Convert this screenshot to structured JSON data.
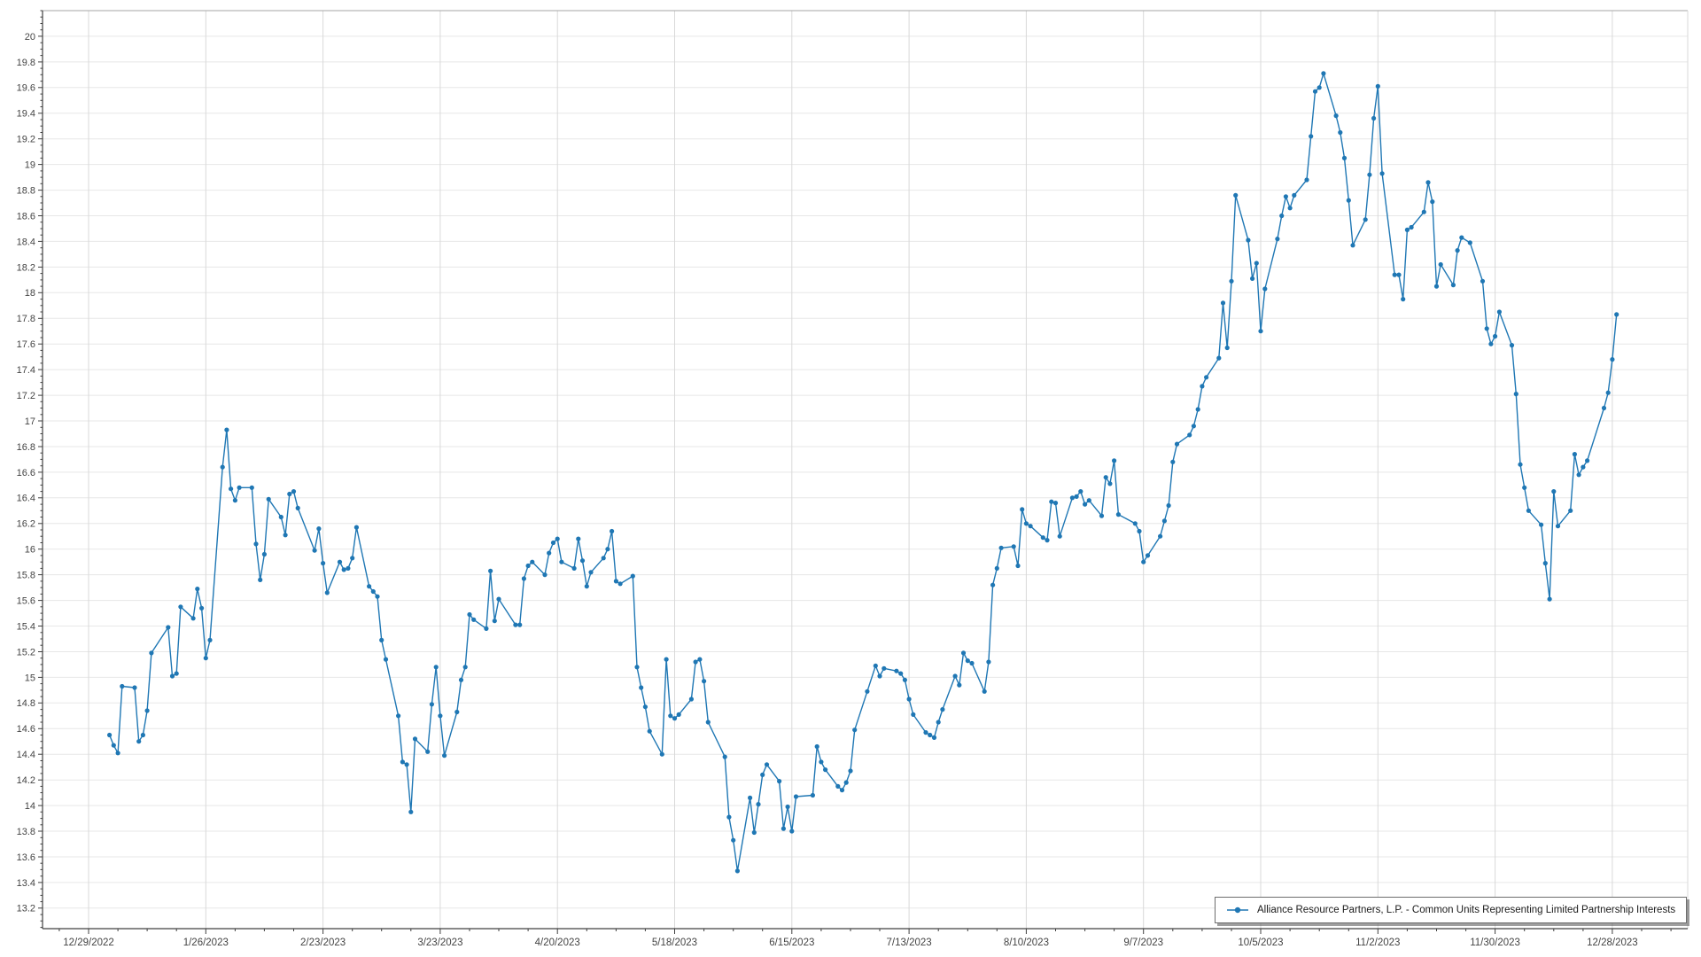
{
  "legend": {
    "label": "Alliance Resource Partners, L.P. - Common Units Representing Limited Partnership Interests"
  },
  "colors": {
    "series": "#1f77b4",
    "grid_vertical": "#d9d9d9",
    "grid_horizontal": "#e7e7e7",
    "axis": "#404040",
    "tick": "#404040",
    "label": "#444444",
    "plot_border_top": "#a6a6a6",
    "plot_border_right": "#d9d9d9"
  },
  "chart_data": {
    "type": "line",
    "title": "",
    "xlabel": "",
    "ylabel": "",
    "grid": true,
    "legend_position": "bottom-right",
    "x_axis": {
      "range": [
        "2022-12-18",
        "2024-01-15"
      ],
      "tick_dates": [
        "2022-12-29",
        "2023-01-26",
        "2023-02-23",
        "2023-03-23",
        "2023-04-20",
        "2023-05-18",
        "2023-06-15",
        "2023-07-13",
        "2023-08-10",
        "2023-09-07",
        "2023-10-05",
        "2023-11-02",
        "2023-11-30",
        "2023-12-28"
      ],
      "tick_labels": [
        "12/29/2022",
        "1/26/2023",
        "2/23/2023",
        "3/23/2023",
        "4/20/2023",
        "5/18/2023",
        "6/15/2023",
        "7/13/2023",
        "8/10/2023",
        "9/7/2023",
        "10/5/2023",
        "11/2/2023",
        "11/30/2023",
        "12/28/2023"
      ],
      "minor_tick_days": 7
    },
    "y_axis": {
      "min": 13.04,
      "max": 20.2,
      "label_step": 0.2,
      "minor_step": 0.05,
      "tick_labels": [
        "20",
        "19.8",
        "19.6",
        "19.4",
        "19.2",
        "19",
        "18.8",
        "18.6",
        "18.4",
        "18.2",
        "18",
        "17.8",
        "17.6",
        "17.4",
        "17.2",
        "17",
        "16.8",
        "16.6",
        "16.4",
        "16.2",
        "16",
        "15.8",
        "15.6",
        "15.4",
        "15.2",
        "15",
        "14.8",
        "14.6",
        "14.4",
        "14.2",
        "14",
        "13.8",
        "13.6",
        "13.4",
        "13.2"
      ]
    },
    "series": [
      {
        "name": "Alliance Resource Partners, L.P. - Common Units Representing Limited Partnership Interests",
        "color": "#1f77b4",
        "points": [
          [
            "2023-01-03",
            14.55
          ],
          [
            "2023-01-04",
            14.47
          ],
          [
            "2023-01-05",
            14.41
          ],
          [
            "2023-01-06",
            14.93
          ],
          [
            "2023-01-09",
            14.92
          ],
          [
            "2023-01-10",
            14.5
          ],
          [
            "2023-01-11",
            14.55
          ],
          [
            "2023-01-12",
            14.74
          ],
          [
            "2023-01-13",
            15.19
          ],
          [
            "2023-01-17",
            15.39
          ],
          [
            "2023-01-18",
            15.01
          ],
          [
            "2023-01-19",
            15.03
          ],
          [
            "2023-01-20",
            15.55
          ],
          [
            "2023-01-23",
            15.46
          ],
          [
            "2023-01-24",
            15.69
          ],
          [
            "2023-01-25",
            15.54
          ],
          [
            "2023-01-26",
            15.15
          ],
          [
            "2023-01-27",
            15.29
          ],
          [
            "2023-01-30",
            16.64
          ],
          [
            "2023-01-31",
            16.93
          ],
          [
            "2023-02-01",
            16.47
          ],
          [
            "2023-02-02",
            16.38
          ],
          [
            "2023-02-03",
            16.48
          ],
          [
            "2023-02-06",
            16.48
          ],
          [
            "2023-02-07",
            16.04
          ],
          [
            "2023-02-08",
            15.76
          ],
          [
            "2023-02-09",
            15.96
          ],
          [
            "2023-02-10",
            16.39
          ],
          [
            "2023-02-13",
            16.25
          ],
          [
            "2023-02-14",
            16.11
          ],
          [
            "2023-02-15",
            16.43
          ],
          [
            "2023-02-16",
            16.45
          ],
          [
            "2023-02-17",
            16.32
          ],
          [
            "2023-02-21",
            15.99
          ],
          [
            "2023-02-22",
            16.16
          ],
          [
            "2023-02-23",
            15.89
          ],
          [
            "2023-02-24",
            15.66
          ],
          [
            "2023-02-27",
            15.9
          ],
          [
            "2023-02-28",
            15.84
          ],
          [
            "2023-03-01",
            15.85
          ],
          [
            "2023-03-02",
            15.93
          ],
          [
            "2023-03-03",
            16.17
          ],
          [
            "2023-03-06",
            15.71
          ],
          [
            "2023-03-07",
            15.67
          ],
          [
            "2023-03-08",
            15.63
          ],
          [
            "2023-03-09",
            15.29
          ],
          [
            "2023-03-10",
            15.14
          ],
          [
            "2023-03-13",
            14.7
          ],
          [
            "2023-03-14",
            14.34
          ],
          [
            "2023-03-15",
            14.32
          ],
          [
            "2023-03-16",
            13.95
          ],
          [
            "2023-03-17",
            14.52
          ],
          [
            "2023-03-20",
            14.42
          ],
          [
            "2023-03-21",
            14.79
          ],
          [
            "2023-03-22",
            15.08
          ],
          [
            "2023-03-23",
            14.7
          ],
          [
            "2023-03-24",
            14.39
          ],
          [
            "2023-03-27",
            14.73
          ],
          [
            "2023-03-28",
            14.98
          ],
          [
            "2023-03-29",
            15.08
          ],
          [
            "2023-03-30",
            15.49
          ],
          [
            "2023-03-31",
            15.45
          ],
          [
            "2023-04-03",
            15.38
          ],
          [
            "2023-04-04",
            15.83
          ],
          [
            "2023-04-05",
            15.44
          ],
          [
            "2023-04-06",
            15.61
          ],
          [
            "2023-04-10",
            15.41
          ],
          [
            "2023-04-11",
            15.41
          ],
          [
            "2023-04-12",
            15.77
          ],
          [
            "2023-04-13",
            15.87
          ],
          [
            "2023-04-14",
            15.9
          ],
          [
            "2023-04-17",
            15.8
          ],
          [
            "2023-04-18",
            15.97
          ],
          [
            "2023-04-19",
            16.05
          ],
          [
            "2023-04-20",
            16.08
          ],
          [
            "2023-04-21",
            15.9
          ],
          [
            "2023-04-24",
            15.85
          ],
          [
            "2023-04-25",
            16.08
          ],
          [
            "2023-04-26",
            15.91
          ],
          [
            "2023-04-27",
            15.71
          ],
          [
            "2023-04-28",
            15.82
          ],
          [
            "2023-05-01",
            15.93
          ],
          [
            "2023-05-02",
            16.0
          ],
          [
            "2023-05-03",
            16.14
          ],
          [
            "2023-05-04",
            15.75
          ],
          [
            "2023-05-05",
            15.73
          ],
          [
            "2023-05-08",
            15.79
          ],
          [
            "2023-05-09",
            15.08
          ],
          [
            "2023-05-10",
            14.92
          ],
          [
            "2023-05-11",
            14.77
          ],
          [
            "2023-05-12",
            14.58
          ],
          [
            "2023-05-15",
            14.4
          ],
          [
            "2023-05-16",
            15.14
          ],
          [
            "2023-05-17",
            14.7
          ],
          [
            "2023-05-18",
            14.68
          ],
          [
            "2023-05-19",
            14.71
          ],
          [
            "2023-05-22",
            14.83
          ],
          [
            "2023-05-23",
            15.12
          ],
          [
            "2023-05-24",
            15.14
          ],
          [
            "2023-05-25",
            14.97
          ],
          [
            "2023-05-26",
            14.65
          ],
          [
            "2023-05-30",
            14.38
          ],
          [
            "2023-05-31",
            13.91
          ],
          [
            "2023-06-01",
            13.73
          ],
          [
            "2023-06-02",
            13.49
          ],
          [
            "2023-06-05",
            14.06
          ],
          [
            "2023-06-06",
            13.79
          ],
          [
            "2023-06-07",
            14.01
          ],
          [
            "2023-06-08",
            14.24
          ],
          [
            "2023-06-09",
            14.32
          ],
          [
            "2023-06-12",
            14.19
          ],
          [
            "2023-06-13",
            13.82
          ],
          [
            "2023-06-14",
            13.99
          ],
          [
            "2023-06-15",
            13.8
          ],
          [
            "2023-06-16",
            14.07
          ],
          [
            "2023-06-20",
            14.08
          ],
          [
            "2023-06-21",
            14.46
          ],
          [
            "2023-06-22",
            14.34
          ],
          [
            "2023-06-23",
            14.28
          ],
          [
            "2023-06-26",
            14.15
          ],
          [
            "2023-06-27",
            14.12
          ],
          [
            "2023-06-28",
            14.18
          ],
          [
            "2023-06-29",
            14.27
          ],
          [
            "2023-06-30",
            14.59
          ],
          [
            "2023-07-03",
            14.89
          ],
          [
            "2023-07-05",
            15.09
          ],
          [
            "2023-07-06",
            15.01
          ],
          [
            "2023-07-07",
            15.07
          ],
          [
            "2023-07-10",
            15.05
          ],
          [
            "2023-07-11",
            15.03
          ],
          [
            "2023-07-12",
            14.98
          ],
          [
            "2023-07-13",
            14.83
          ],
          [
            "2023-07-14",
            14.71
          ],
          [
            "2023-07-17",
            14.57
          ],
          [
            "2023-07-18",
            14.55
          ],
          [
            "2023-07-19",
            14.53
          ],
          [
            "2023-07-20",
            14.65
          ],
          [
            "2023-07-21",
            14.75
          ],
          [
            "2023-07-24",
            15.01
          ],
          [
            "2023-07-25",
            14.94
          ],
          [
            "2023-07-26",
            15.19
          ],
          [
            "2023-07-27",
            15.13
          ],
          [
            "2023-07-28",
            15.11
          ],
          [
            "2023-07-31",
            14.89
          ],
          [
            "2023-08-01",
            15.12
          ],
          [
            "2023-08-02",
            15.72
          ],
          [
            "2023-08-03",
            15.85
          ],
          [
            "2023-08-04",
            16.01
          ],
          [
            "2023-08-07",
            16.02
          ],
          [
            "2023-08-08",
            15.87
          ],
          [
            "2023-08-09",
            16.31
          ],
          [
            "2023-08-10",
            16.2
          ],
          [
            "2023-08-11",
            16.18
          ],
          [
            "2023-08-14",
            16.09
          ],
          [
            "2023-08-15",
            16.07
          ],
          [
            "2023-08-16",
            16.37
          ],
          [
            "2023-08-17",
            16.36
          ],
          [
            "2023-08-18",
            16.1
          ],
          [
            "2023-08-21",
            16.4
          ],
          [
            "2023-08-22",
            16.41
          ],
          [
            "2023-08-23",
            16.45
          ],
          [
            "2023-08-24",
            16.35
          ],
          [
            "2023-08-25",
            16.38
          ],
          [
            "2023-08-28",
            16.26
          ],
          [
            "2023-08-29",
            16.56
          ],
          [
            "2023-08-30",
            16.51
          ],
          [
            "2023-08-31",
            16.69
          ],
          [
            "2023-09-01",
            16.27
          ],
          [
            "2023-09-05",
            16.2
          ],
          [
            "2023-09-06",
            16.14
          ],
          [
            "2023-09-07",
            15.9
          ],
          [
            "2023-09-08",
            15.95
          ],
          [
            "2023-09-11",
            16.1
          ],
          [
            "2023-09-12",
            16.22
          ],
          [
            "2023-09-13",
            16.34
          ],
          [
            "2023-09-14",
            16.68
          ],
          [
            "2023-09-15",
            16.82
          ],
          [
            "2023-09-18",
            16.89
          ],
          [
            "2023-09-19",
            16.96
          ],
          [
            "2023-09-20",
            17.09
          ],
          [
            "2023-09-21",
            17.27
          ],
          [
            "2023-09-22",
            17.34
          ],
          [
            "2023-09-25",
            17.49
          ],
          [
            "2023-09-26",
            17.92
          ],
          [
            "2023-09-27",
            17.57
          ],
          [
            "2023-09-28",
            18.09
          ],
          [
            "2023-09-29",
            18.76
          ],
          [
            "2023-10-02",
            18.41
          ],
          [
            "2023-10-03",
            18.11
          ],
          [
            "2023-10-04",
            18.23
          ],
          [
            "2023-10-05",
            17.7
          ],
          [
            "2023-10-06",
            18.03
          ],
          [
            "2023-10-09",
            18.42
          ],
          [
            "2023-10-10",
            18.6
          ],
          [
            "2023-10-11",
            18.75
          ],
          [
            "2023-10-12",
            18.66
          ],
          [
            "2023-10-13",
            18.76
          ],
          [
            "2023-10-16",
            18.88
          ],
          [
            "2023-10-17",
            19.22
          ],
          [
            "2023-10-18",
            19.57
          ],
          [
            "2023-10-19",
            19.6
          ],
          [
            "2023-10-20",
            19.71
          ],
          [
            "2023-10-23",
            19.38
          ],
          [
            "2023-10-24",
            19.25
          ],
          [
            "2023-10-25",
            19.05
          ],
          [
            "2023-10-26",
            18.72
          ],
          [
            "2023-10-27",
            18.37
          ],
          [
            "2023-10-30",
            18.57
          ],
          [
            "2023-10-31",
            18.92
          ],
          [
            "2023-11-01",
            19.36
          ],
          [
            "2023-11-02",
            19.61
          ],
          [
            "2023-11-03",
            18.93
          ],
          [
            "2023-11-06",
            18.14
          ],
          [
            "2023-11-07",
            18.14
          ],
          [
            "2023-11-08",
            17.95
          ],
          [
            "2023-11-09",
            18.49
          ],
          [
            "2023-11-10",
            18.51
          ],
          [
            "2023-11-13",
            18.63
          ],
          [
            "2023-11-14",
            18.86
          ],
          [
            "2023-11-15",
            18.71
          ],
          [
            "2023-11-16",
            18.05
          ],
          [
            "2023-11-17",
            18.22
          ],
          [
            "2023-11-20",
            18.06
          ],
          [
            "2023-11-21",
            18.33
          ],
          [
            "2023-11-22",
            18.43
          ],
          [
            "2023-11-24",
            18.39
          ],
          [
            "2023-11-27",
            18.09
          ],
          [
            "2023-11-28",
            17.72
          ],
          [
            "2023-11-29",
            17.6
          ],
          [
            "2023-11-30",
            17.66
          ],
          [
            "2023-12-01",
            17.85
          ],
          [
            "2023-12-04",
            17.59
          ],
          [
            "2023-12-05",
            17.21
          ],
          [
            "2023-12-06",
            16.66
          ],
          [
            "2023-12-07",
            16.48
          ],
          [
            "2023-12-08",
            16.3
          ],
          [
            "2023-12-11",
            16.19
          ],
          [
            "2023-12-12",
            15.89
          ],
          [
            "2023-12-13",
            15.61
          ],
          [
            "2023-12-14",
            16.45
          ],
          [
            "2023-12-15",
            16.18
          ],
          [
            "2023-12-18",
            16.3
          ],
          [
            "2023-12-19",
            16.74
          ],
          [
            "2023-12-20",
            16.58
          ],
          [
            "2023-12-21",
            16.64
          ],
          [
            "2023-12-22",
            16.69
          ],
          [
            "2023-12-26",
            17.1
          ],
          [
            "2023-12-27",
            17.22
          ],
          [
            "2023-12-28",
            17.48
          ],
          [
            "2023-12-29",
            17.83
          ]
        ]
      }
    ]
  }
}
